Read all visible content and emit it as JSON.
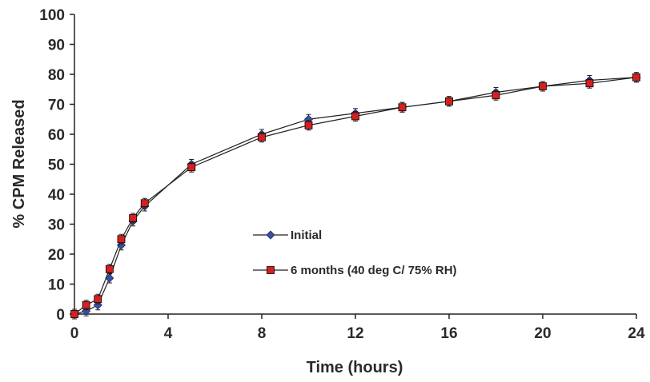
{
  "chart_data": {
    "type": "line",
    "xlabel": "Time (hours)",
    "ylabel": "% CPM Released",
    "xlim": [
      0,
      24
    ],
    "ylim": [
      0,
      100
    ],
    "xticks": [
      0,
      4,
      8,
      12,
      16,
      20,
      24
    ],
    "yticks": [
      0,
      10,
      20,
      30,
      40,
      50,
      60,
      70,
      80,
      90,
      100
    ],
    "grid": false,
    "legend_position": "center",
    "series": [
      {
        "name": "Initial",
        "color": "#3b4fa0",
        "marker": "diamond",
        "x": [
          0,
          0.5,
          1,
          1.5,
          2,
          2.5,
          3,
          5,
          8,
          10,
          12,
          14,
          16,
          18,
          20,
          22,
          24
        ],
        "y": [
          0,
          1,
          3,
          12,
          23,
          31,
          36,
          50,
          60,
          65,
          67,
          69,
          71,
          74,
          76,
          78,
          79
        ]
      },
      {
        "name": "6 months (40 deg C/ 75% RH)",
        "color": "#d42020",
        "marker": "square",
        "x": [
          0,
          0.5,
          1,
          1.5,
          2,
          2.5,
          3,
          5,
          8,
          10,
          12,
          14,
          16,
          18,
          20,
          22,
          24
        ],
        "y": [
          0,
          3,
          5,
          15,
          25,
          32,
          37,
          49,
          59,
          63,
          66,
          69,
          71,
          73,
          76,
          77,
          79
        ]
      }
    ]
  }
}
